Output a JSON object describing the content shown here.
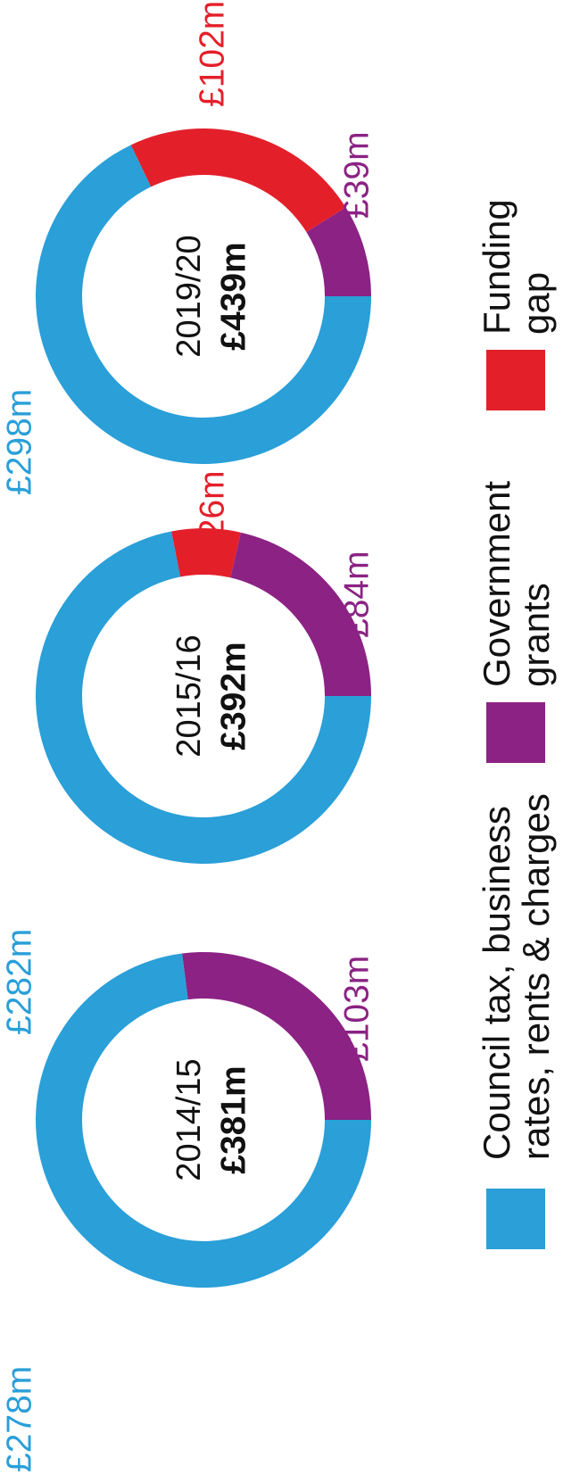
{
  "legend": [
    {
      "name": "Council tax, business rates, rents & charges",
      "color": "#2a9fd8"
    },
    {
      "name": "Government grants",
      "color": "#8b2284"
    },
    {
      "name": "Funding gap",
      "color": "#e3202a"
    }
  ],
  "chart_data": [
    {
      "type": "pie",
      "title": "2014/15",
      "total": 381,
      "total_label": "£381m",
      "values": [
        278,
        103
      ],
      "value_labels": [
        "£278m",
        "£103m"
      ]
    },
    {
      "type": "pie",
      "title": "2015/16",
      "total": 392,
      "total_label": "£392m",
      "values": [
        282,
        84,
        26
      ],
      "value_labels": [
        "£282m",
        "£84m",
        "£26m"
      ]
    },
    {
      "type": "pie",
      "title": "2019/20",
      "total": 439,
      "total_label": "£439m",
      "values": [
        298,
        39,
        102
      ],
      "value_labels": [
        "£298m",
        "£39m",
        "£102m"
      ]
    }
  ]
}
